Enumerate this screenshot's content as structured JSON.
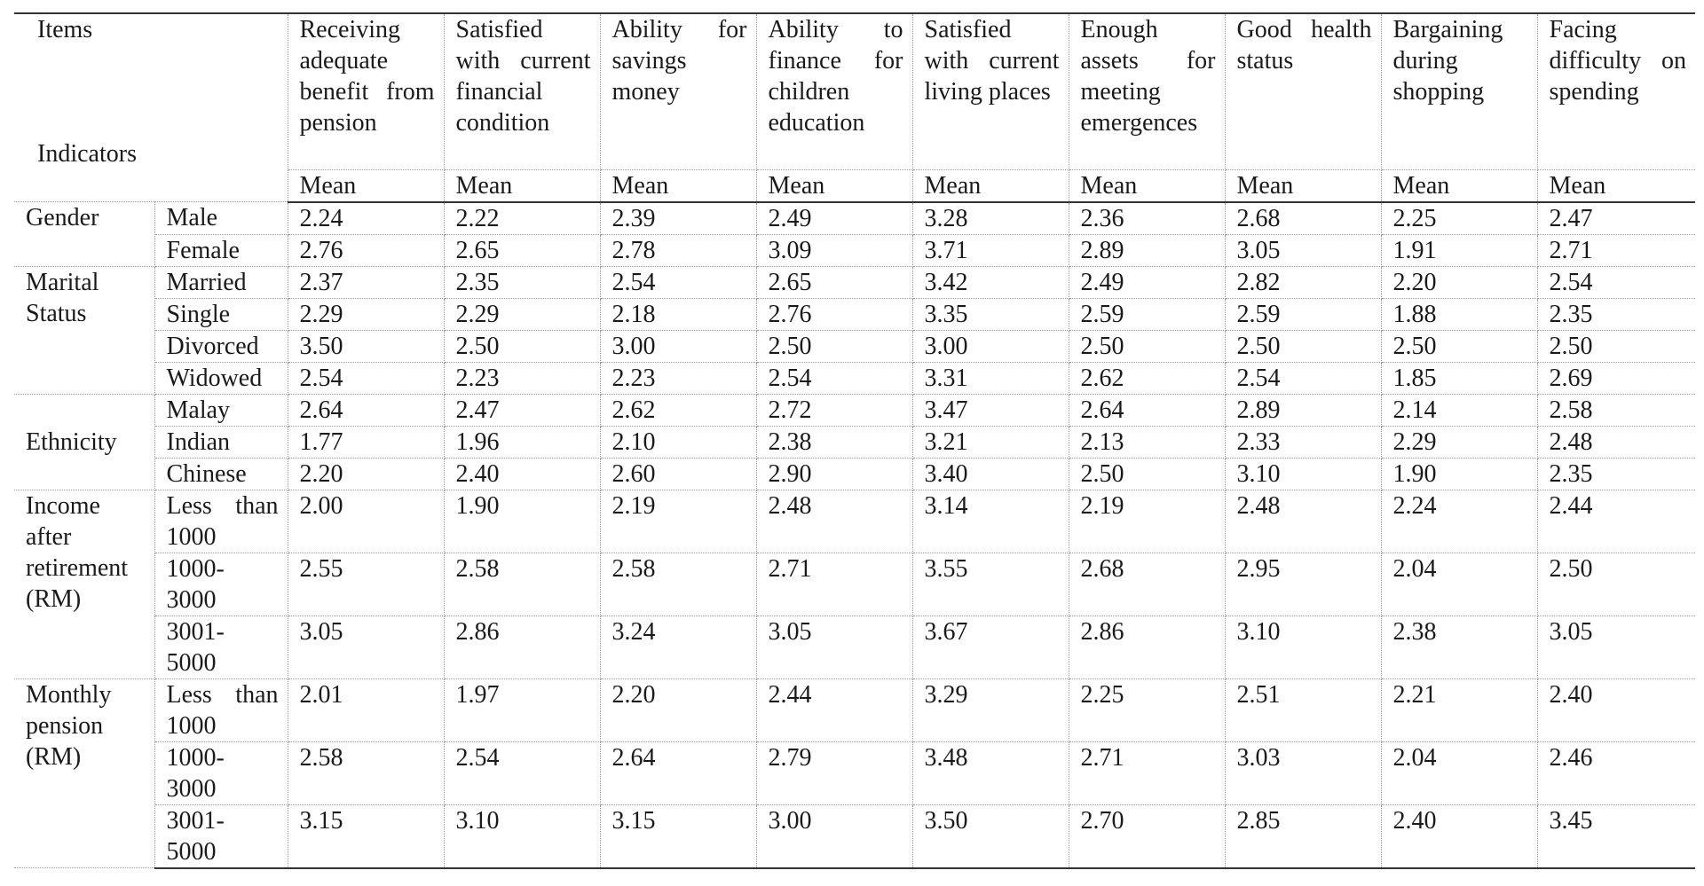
{
  "table": {
    "corner": {
      "top_label": "Items",
      "bottom_label": "Indicators"
    },
    "columns": [
      "Receiving adequate benefit from pension",
      "Satisfied with current financial condition",
      "Ability for savings money",
      "Ability to finance for children education",
      "Satisfied with current living places",
      "Enough assets for meeting emergences",
      "Good health status",
      "Bargaining during shopping",
      "Facing difficulty on spending"
    ],
    "subheader": "Mean",
    "groups": [
      {
        "name": "Gender",
        "rows": [
          {
            "label": "Male",
            "values": [
              "2.24",
              "2.22",
              "2.39",
              "2.49",
              "3.28",
              "2.36",
              "2.68",
              "2.25",
              "2.47"
            ]
          },
          {
            "label": "Female",
            "values": [
              "2.76",
              "2.65",
              "2.78",
              "3.09",
              "3.71",
              "2.89",
              "3.05",
              "1.91",
              "2.71"
            ]
          }
        ]
      },
      {
        "name": "Marital Status",
        "rows": [
          {
            "label": "Married",
            "values": [
              "2.37",
              "2.35",
              "2.54",
              "2.65",
              "3.42",
              "2.49",
              "2.82",
              "2.20",
              "2.54"
            ]
          },
          {
            "label": "Single",
            "values": [
              "2.29",
              "2.29",
              "2.18",
              "2.76",
              "3.35",
              "2.59",
              "2.59",
              "1.88",
              "2.35"
            ]
          },
          {
            "label": "Divorced",
            "values": [
              "3.50",
              "2.50",
              "3.00",
              "2.50",
              "3.00",
              "2.50",
              "2.50",
              "2.50",
              "2.50"
            ]
          },
          {
            "label": "Widowed",
            "values": [
              "2.54",
              "2.23",
              "2.23",
              "2.54",
              "3.31",
              "2.62",
              "2.54",
              "1.85",
              "2.69"
            ]
          }
        ]
      },
      {
        "name": "Ethnicity",
        "rows": [
          {
            "label": "Malay",
            "values": [
              "2.64",
              "2.47",
              "2.62",
              "2.72",
              "3.47",
              "2.64",
              "2.89",
              "2.14",
              "2.58"
            ]
          },
          {
            "label": "Indian",
            "values": [
              "1.77",
              "1.96",
              "2.10",
              "2.38",
              "3.21",
              "2.13",
              "2.33",
              "2.29",
              "2.48"
            ]
          },
          {
            "label": "Chinese",
            "values": [
              "2.20",
              "2.40",
              "2.60",
              "2.90",
              "3.40",
              "2.50",
              "3.10",
              "1.90",
              "2.35"
            ]
          }
        ]
      },
      {
        "name": "Income after retirement (RM)",
        "rows": [
          {
            "label": "Less than 1000",
            "values": [
              "2.00",
              "1.90",
              "2.19",
              "2.48",
              "3.14",
              "2.19",
              "2.48",
              "2.24",
              "2.44"
            ]
          },
          {
            "label": "1000- 3000",
            "values": [
              "2.55",
              "2.58",
              "2.58",
              "2.71",
              "3.55",
              "2.68",
              "2.95",
              "2.04",
              "2.50"
            ]
          },
          {
            "label": "3001- 5000",
            "values": [
              "3.05",
              "2.86",
              "3.24",
              "3.05",
              "3.67",
              "2.86",
              "3.10",
              "2.38",
              "3.05"
            ]
          }
        ]
      },
      {
        "name": "Monthly pension (RM)",
        "rows": [
          {
            "label": "Less than 1000",
            "values": [
              "2.01",
              "1.97",
              "2.20",
              "2.44",
              "3.29",
              "2.25",
              "2.51",
              "2.21",
              "2.40"
            ]
          },
          {
            "label": "1000- 3000",
            "values": [
              "2.58",
              "2.54",
              "2.64",
              "2.79",
              "3.48",
              "2.71",
              "3.03",
              "2.04",
              "2.46"
            ]
          },
          {
            "label": "3001- 5000",
            "values": [
              "3.15",
              "3.10",
              "3.15",
              "3.00",
              "3.50",
              "2.70",
              "2.85",
              "2.40",
              "3.45"
            ]
          }
        ]
      }
    ]
  }
}
